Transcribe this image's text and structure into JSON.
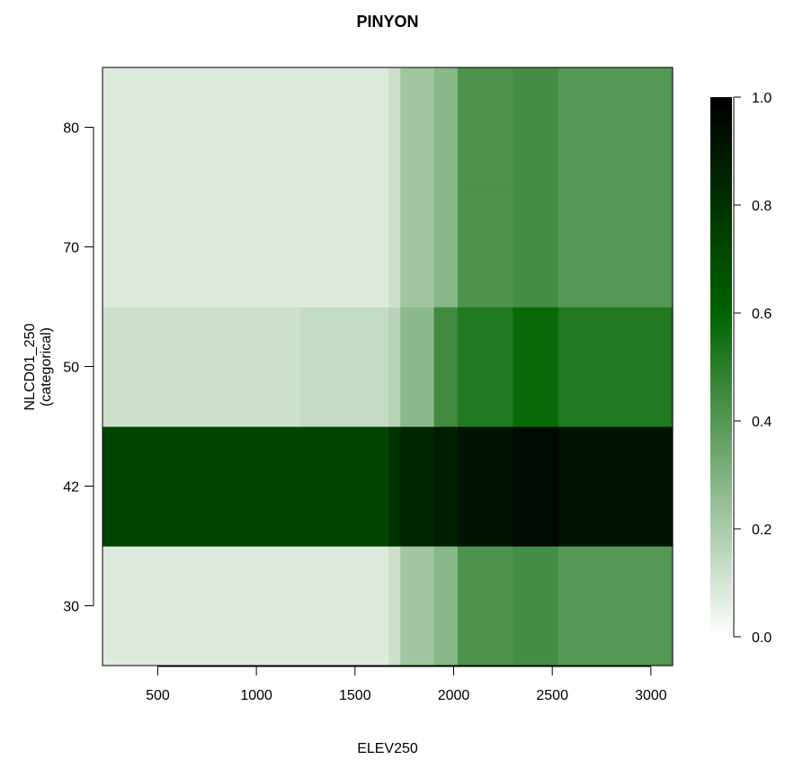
{
  "chart_data": {
    "type": "heatmap",
    "title": "PINYON",
    "xlabel": "ELEV250",
    "ylabel": "NLCD01_250",
    "ylabel_sub": "(categorical)",
    "x_ticks": [
      500,
      1000,
      1500,
      2000,
      2500,
      3000
    ],
    "xlim": [
      220,
      3110
    ],
    "y_categories": [
      "30",
      "42",
      "50",
      "70",
      "80"
    ],
    "x_bins": [
      220,
      1220,
      1670,
      1730,
      1900,
      2020,
      2300,
      2530,
      3110
    ],
    "values": {
      "30": [
        0.08,
        0.08,
        0.12,
        0.22,
        0.28,
        0.42,
        0.44,
        0.4
      ],
      "42": [
        0.72,
        0.72,
        0.8,
        0.85,
        0.88,
        0.92,
        0.96,
        0.92
      ],
      "50": [
        0.12,
        0.14,
        0.17,
        0.27,
        0.45,
        0.52,
        0.58,
        0.52
      ],
      "70": [
        0.08,
        0.08,
        0.12,
        0.22,
        0.28,
        0.42,
        0.44,
        0.4
      ],
      "80": [
        0.08,
        0.08,
        0.12,
        0.22,
        0.28,
        0.42,
        0.44,
        0.4
      ]
    },
    "colorbar": {
      "range": [
        0.0,
        1.0
      ],
      "ticks": [
        "0.0",
        "0.2",
        "0.4",
        "0.6",
        "0.8",
        "1.0"
      ]
    },
    "colors": {
      "low": "#ffffff",
      "mid": "#006400",
      "high": "#000000"
    }
  }
}
